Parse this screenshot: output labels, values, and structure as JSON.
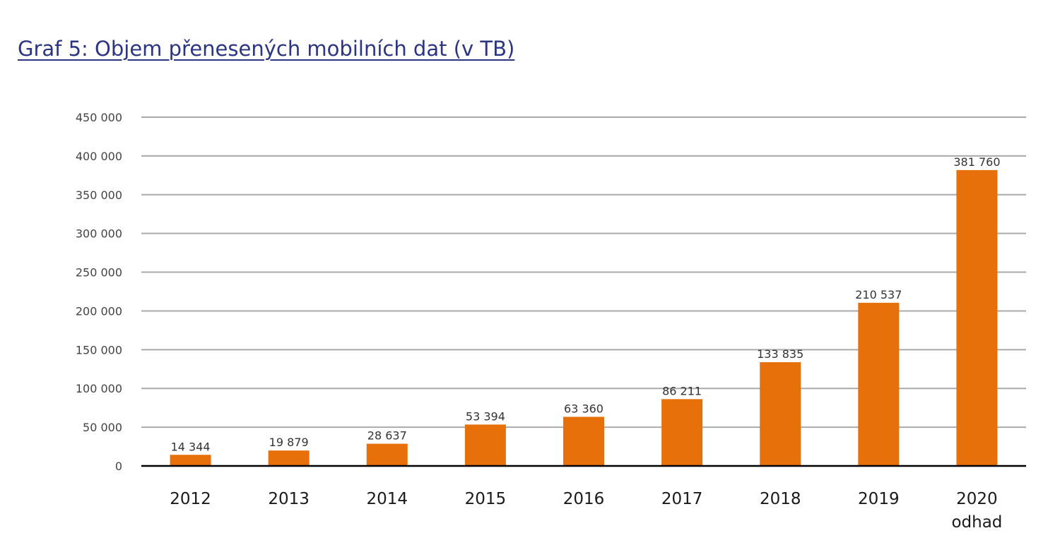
{
  "chart_data": {
    "type": "bar",
    "title": "Graf 5: Objem přenesených mobilních dat (v TB)",
    "categories": [
      [
        "2012"
      ],
      [
        "2013"
      ],
      [
        "2014"
      ],
      [
        "2015"
      ],
      [
        "2016"
      ],
      [
        "2017"
      ],
      [
        "2018"
      ],
      [
        "2019"
      ],
      [
        "2020",
        "odhad"
      ]
    ],
    "values": [
      14344,
      19879,
      28637,
      53394,
      63360,
      86211,
      133835,
      210537,
      381760
    ],
    "data_labels": [
      "14 344",
      "19 879",
      "28 637",
      "53 394",
      "63 360",
      "86 211",
      "133 835",
      "210 537",
      "381 760"
    ],
    "y_ticks": [
      0,
      50000,
      100000,
      150000,
      200000,
      250000,
      300000,
      350000,
      400000,
      450000
    ],
    "y_tick_labels": [
      "0",
      "50 000",
      "100 000",
      "150 000",
      "200 000",
      "250 000",
      "300 000",
      "350 000",
      "400 000",
      "450 000"
    ],
    "ylim": [
      0,
      450000
    ],
    "grid": true,
    "bar_color": "#e8700a",
    "gridline_color": "#aaaaaa",
    "axis_color": "#000000"
  }
}
